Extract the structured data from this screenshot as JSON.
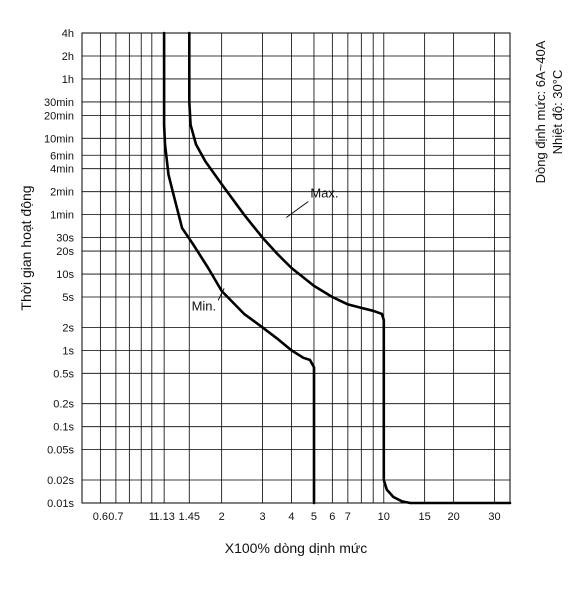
{
  "chart_data": {
    "type": "line",
    "title": "",
    "xlabel": "X100% dòng dịnh mức",
    "ylabel": "Thời gian hoạt động",
    "side_notes": [
      "Dòng định mức: 6A~40A",
      "Nhiệt độ: 30°C"
    ],
    "x_scale": "log",
    "y_scale": "log",
    "xlim": [
      0.5,
      35
    ],
    "x_ticks": [
      0.6,
      0.7,
      1,
      1.13,
      1.45,
      2,
      3,
      4,
      5,
      6,
      7,
      10,
      15,
      20,
      30
    ],
    "x_tick_labels": [
      "0.6",
      "0.7",
      "1",
      "1.13",
      "1.45",
      "2",
      "3",
      "4",
      "5",
      "6",
      "7",
      "10",
      "15",
      "20",
      "30"
    ],
    "x_gridlines": [
      0.6,
      0.7,
      0.8,
      0.9,
      1,
      1.13,
      1.45,
      2,
      3,
      4,
      5,
      6,
      7,
      8,
      9,
      10,
      15,
      20,
      30
    ],
    "y_unit": "seconds",
    "ylim_seconds": [
      0.01,
      14400
    ],
    "y_ticks_seconds": [
      14400,
      7200,
      3600,
      1800,
      1200,
      600,
      360,
      240,
      120,
      60,
      30,
      20,
      10,
      5,
      2,
      1,
      0.5,
      0.2,
      0.1,
      0.05,
      0.02,
      0.01
    ],
    "y_tick_labels": [
      "4h",
      "2h",
      "1h",
      "30min",
      "20min",
      "10min",
      "6min",
      "4min",
      "2min",
      "1min",
      "30s",
      "20s",
      "10s",
      "5s",
      "2s",
      "1s",
      "0.5s",
      "0.2s",
      "0.1s",
      "0.05s",
      "0.02s",
      "0.01s"
    ],
    "grid": true,
    "series": [
      {
        "name": "Min.",
        "x": [
          1.13,
          1.13,
          1.14,
          1.18,
          1.25,
          1.35,
          1.5,
          1.75,
          2,
          2.5,
          3,
          3.5,
          4,
          4.5,
          4.8,
          5,
          5,
          5
        ],
        "y": [
          14400,
          900,
          500,
          200,
          100,
          40,
          25,
          12,
          6,
          3,
          2,
          1.4,
          1,
          0.8,
          0.75,
          0.6,
          0.1,
          0.01
        ]
      },
      {
        "name": "Max.",
        "x": [
          1.45,
          1.45,
          1.47,
          1.55,
          1.7,
          2,
          2.5,
          3,
          3.5,
          4,
          5,
          6,
          7,
          8,
          9,
          9.8,
          10,
          10,
          10,
          10.3,
          11,
          12,
          13,
          15,
          20,
          30,
          35
        ],
        "y": [
          14400,
          1800,
          900,
          500,
          300,
          150,
          60,
          30,
          18,
          12,
          7,
          5,
          4,
          3.6,
          3.3,
          3,
          2.5,
          0.1,
          0.02,
          0.015,
          0.012,
          0.0105,
          0.01,
          0.01,
          0.01,
          0.01,
          0.01
        ]
      }
    ],
    "annotations": [
      {
        "text": "Max.",
        "series": "Max.",
        "x": 3.8,
        "y": 55
      },
      {
        "text": "Min.",
        "series": "Min.",
        "x": 2.05,
        "y": 6.5
      }
    ],
    "colors": {
      "curve": "#000000",
      "grid": "#000000"
    }
  }
}
